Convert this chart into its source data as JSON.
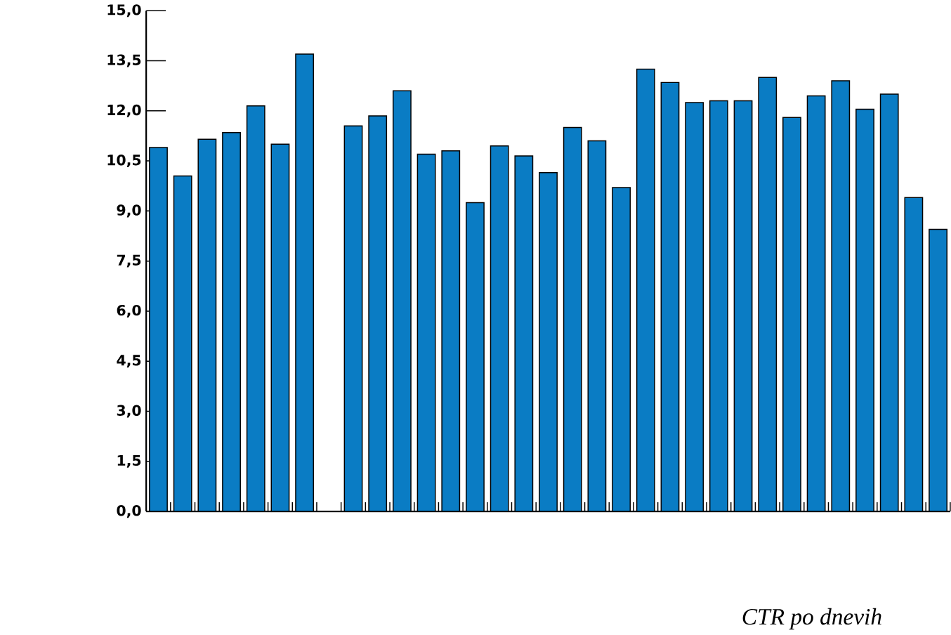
{
  "chart_data": {
    "type": "bar",
    "xlabel": "CTR po dnevih",
    "categories": [
      null,
      null,
      null,
      null,
      null,
      null,
      null,
      null,
      null,
      null,
      null,
      null,
      null,
      null,
      null,
      null,
      null,
      null,
      null,
      null,
      null,
      null,
      null,
      null,
      null,
      null,
      null,
      null,
      null,
      null,
      null,
      null,
      null
    ],
    "values": [
      10.9,
      10.05,
      11.15,
      11.35,
      12.15,
      11.0,
      13.7,
      null,
      11.55,
      11.85,
      12.6,
      10.7,
      10.8,
      9.25,
      10.95,
      10.65,
      10.15,
      11.5,
      11.1,
      9.7,
      13.25,
      12.85,
      12.25,
      12.3,
      12.3,
      13.0,
      11.8,
      12.45,
      12.9,
      12.05,
      12.5,
      9.4,
      8.45
    ],
    "color": "#0a7cc4",
    "ylim": [
      0,
      15
    ],
    "yticks": [
      {
        "value": 0,
        "label": "0,0"
      },
      {
        "value": 1.5,
        "label": "1,5"
      },
      {
        "value": 3,
        "label": "3,0"
      },
      {
        "value": 4.5,
        "label": "4,5"
      },
      {
        "value": 6,
        "label": "6,0"
      },
      {
        "value": 7.5,
        "label": "7,5"
      },
      {
        "value": 9,
        "label": "9,0"
      },
      {
        "value": 10.5,
        "label": "10,5"
      },
      {
        "value": 12,
        "label": "12,0"
      },
      {
        "value": 13.5,
        "label": "13,5"
      },
      {
        "value": 15,
        "label": "15,0"
      }
    ],
    "grid": false
  }
}
